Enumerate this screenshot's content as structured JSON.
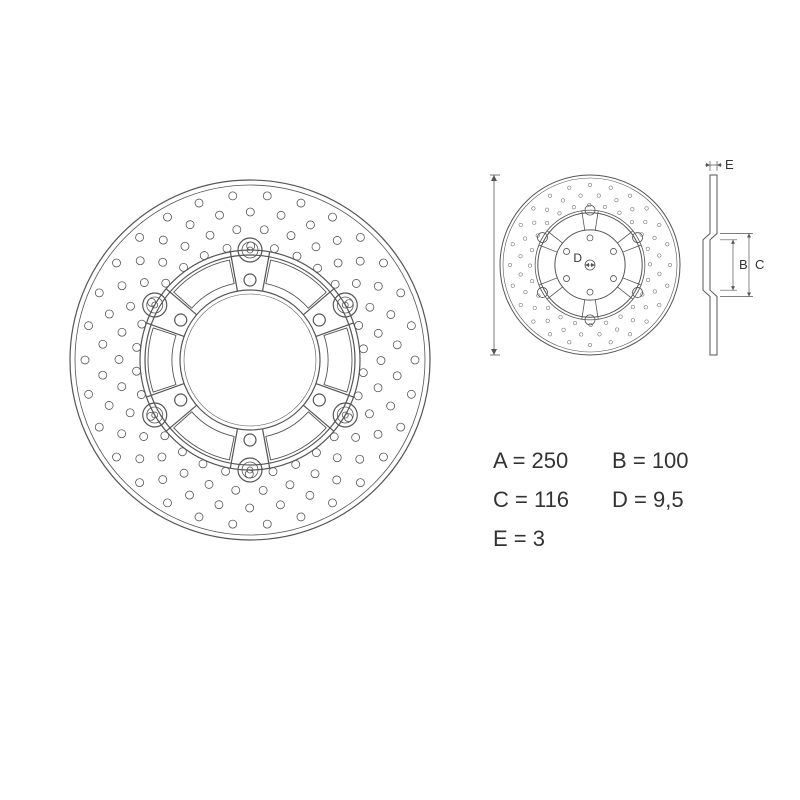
{
  "main_disc": {
    "outer_diameter": 360,
    "rotor_inner_diameter": 210,
    "carrier_outer_diameter": 220,
    "hub_bore_diameter": 140,
    "stroke_color": "#555555",
    "stroke_width": 1.2,
    "fill": "none",
    "drill_rings": [
      {
        "radius": 165,
        "count": 30,
        "hole_r": 4
      },
      {
        "radius": 148,
        "count": 30,
        "hole_r": 4
      },
      {
        "radius": 131,
        "count": 30,
        "hole_r": 4
      },
      {
        "radius": 114,
        "count": 30,
        "hole_r": 4
      }
    ],
    "carrier_spokes": 6,
    "float_buttons": 6,
    "float_button_r": 12,
    "bolt_circle_r": 80,
    "bolt_hole_r": 6
  },
  "small_disc": {
    "outer_diameter": 180,
    "stroke_color": "#555555",
    "stroke_width": 1
  },
  "side_view": {
    "height": 180,
    "stroke_color": "#555555"
  },
  "dim_labels": {
    "A": "A",
    "B": "B",
    "C": "C",
    "D": "D",
    "E": "E"
  },
  "specs": {
    "A": {
      "label": "A",
      "value": "250"
    },
    "B": {
      "label": "B",
      "value": "100"
    },
    "C": {
      "label": "C",
      "value": "116"
    },
    "D": {
      "label": "D",
      "value": "9,5"
    },
    "E": {
      "label": "E",
      "value": "3"
    }
  },
  "colors": {
    "text": "#333333",
    "line": "#555555",
    "bg": "#ffffff"
  }
}
